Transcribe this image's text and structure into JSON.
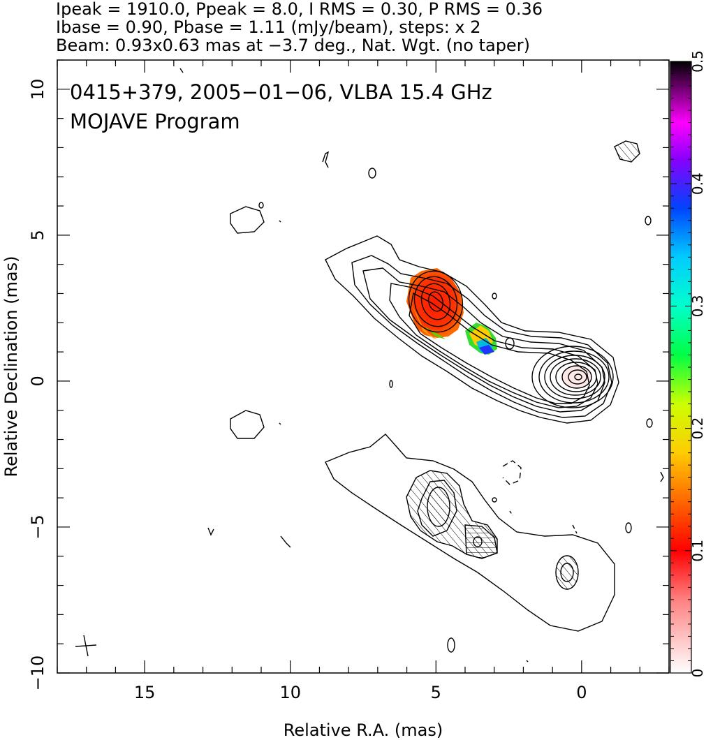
{
  "header": {
    "line1": "Ipeak = 1910.0, Ppeak = 8.0, I RMS = 0.30, P RMS = 0.36",
    "line2": "Ibase = 0.90, Pbase = 1.11 (mJy/beam), steps: x 2",
    "line3": "Beam: 0.93x0.63 mas at −3.7 deg., Nat. Wgt. (no taper)"
  },
  "annotations": {
    "title": "0415+379, 2005−01−06, VLBA 15.4 GHz",
    "program": "MOJAVE Program"
  },
  "chart_data": {
    "type": "contour",
    "xlabel": "Relative R.A. (mas)",
    "ylabel": "Relative Declination (mas)",
    "xlim": [
      18,
      -3
    ],
    "ylim": [
      -10,
      11
    ],
    "x_ticks": [
      15,
      10,
      5,
      0
    ],
    "y_ticks": [
      10,
      5,
      0,
      -5,
      -10
    ],
    "colorbar": {
      "range": [
        0,
        0.5
      ],
      "ticks": [
        0,
        0.1,
        0.2,
        0.3,
        0.4,
        0.5
      ]
    },
    "upper_image": "total intensity contours with fractional polarization colour",
    "lower_image": "polarized intensity contours with EVPA hatching",
    "core_position": [
      0,
      0
    ],
    "peaks": {
      "Ipeak_mJy_per_beam": 1910.0,
      "Ppeak_mJy_per_beam": 8.0
    }
  }
}
